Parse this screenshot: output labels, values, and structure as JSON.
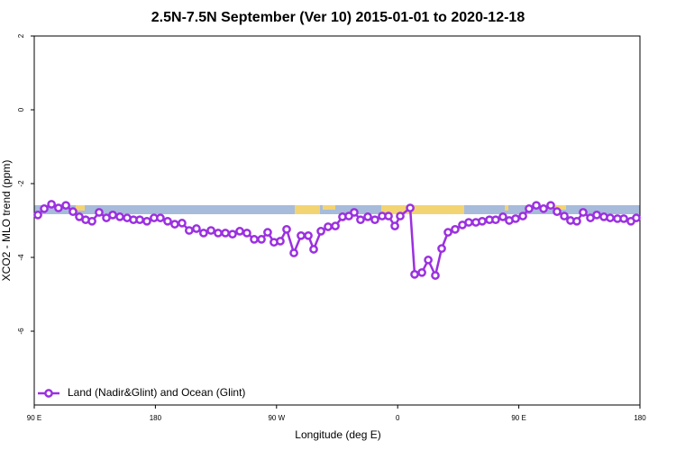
{
  "chart_data": {
    "type": "line",
    "title": "2.5N-7.5N September (Ver 10)   2015-01-01 to 2020-12-18",
    "x_label": "Longitude (deg E)",
    "y_label": "XCO2 - MLO trend (ppm)",
    "xlim": [
      90,
      540
    ],
    "xticks": [
      {
        "value": 90,
        "label": "90 E"
      },
      180,
      {
        "value": 270,
        "label": "90 W"
      },
      {
        "value": 360,
        "label": "0"
      },
      {
        "value": 450,
        "label": "90 E"
      },
      {
        "value": 540,
        "label": "180"
      }
    ],
    "ylim": [
      -8,
      2
    ],
    "yticks": [
      2,
      0,
      -2,
      -4,
      -6
    ],
    "legend": "bottom-left",
    "series": [
      {
        "name": "Land (Nadir&Glint) and Ocean (Glint)",
        "color": "#9b30e0",
        "x": [
          92.7,
          97.4,
          102.8,
          108,
          113.5,
          118.8,
          123.5,
          128.2,
          132.9,
          138.2,
          143.6,
          148.3,
          153.6,
          159,
          163.7,
          168.4,
          173.7,
          179,
          183.7,
          189.1,
          194.4,
          199.8,
          205.1,
          210.5,
          215.8,
          221.3,
          226.6,
          232,
          237.3,
          242.7,
          248,
          253.4,
          258.8,
          263.4,
          268.1,
          272.8,
          277.5,
          282.9,
          288.2,
          293.6,
          297.6,
          303,
          308.3,
          313.7,
          319,
          323.7,
          327.7,
          332.4,
          337.8,
          343.1,
          348.5,
          353.2,
          357.9,
          361.9,
          369.3,
          372.6,
          378,
          382.7,
          388,
          392.7,
          397.4,
          402.7,
          408.1,
          412.8,
          418.1,
          422.8,
          428.2,
          432.8,
          438.2,
          442.9,
          447.6,
          453,
          457.6,
          463,
          468.4,
          473.7,
          478.4,
          483.8,
          488.4,
          493.1,
          497.8,
          503.2,
          507.9,
          513.2,
          517.9,
          523.3,
          528,
          533.3,
          537.3
        ],
        "values": [
          -2.85,
          -2.68,
          -2.56,
          -2.66,
          -2.59,
          -2.76,
          -2.9,
          -2.98,
          -3.02,
          -2.78,
          -2.93,
          -2.85,
          -2.9,
          -2.93,
          -2.98,
          -2.98,
          -3.02,
          -2.93,
          -2.93,
          -3.02,
          -3.1,
          -3.07,
          -3.27,
          -3.22,
          -3.34,
          -3.27,
          -3.34,
          -3.34,
          -3.37,
          -3.29,
          -3.34,
          -3.51,
          -3.51,
          -3.32,
          -3.59,
          -3.56,
          -3.24,
          -3.88,
          -3.41,
          -3.41,
          -3.78,
          -3.29,
          -3.17,
          -3.15,
          -2.9,
          -2.88,
          -2.78,
          -2.98,
          -2.9,
          -2.98,
          -2.88,
          -2.88,
          -3.15,
          -2.88,
          -2.66,
          -4.46,
          -4.41,
          -4.07,
          -4.49,
          -3.76,
          -3.32,
          -3.24,
          -3.12,
          -3.05,
          -3.05,
          -3.02,
          -2.98,
          -2.98,
          -2.9,
          -3,
          -2.95,
          -2.88,
          -2.68,
          -2.59,
          -2.68,
          -2.59,
          -2.76,
          -2.88,
          -3,
          -3.02,
          -2.78,
          -2.93,
          -2.85,
          -2.9,
          -2.93,
          -2.95,
          -2.95,
          -3.02,
          -2.93
        ]
      }
    ]
  }
}
